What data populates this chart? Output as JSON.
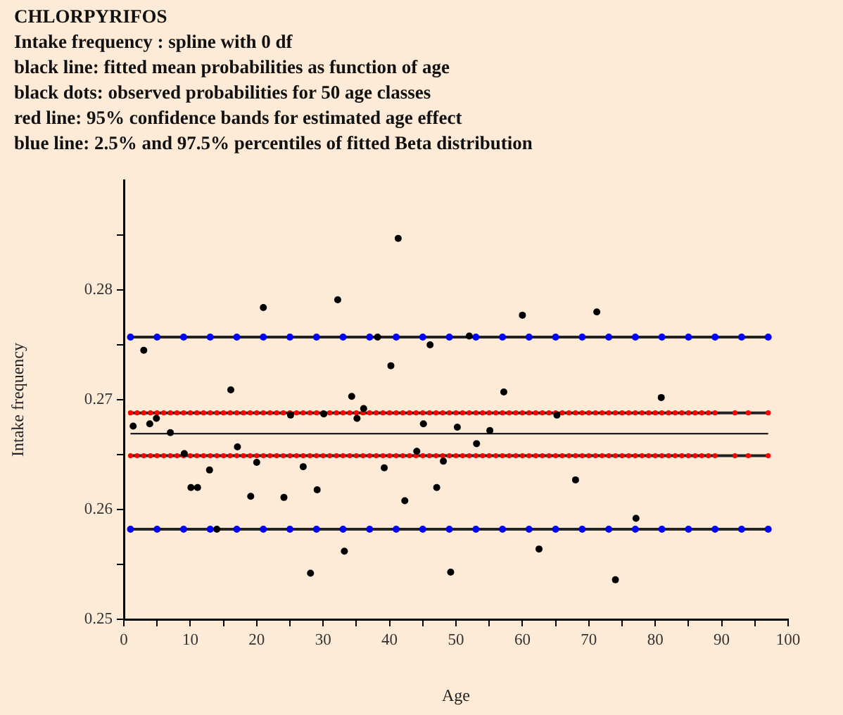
{
  "chart_data": {
    "type": "scatter",
    "title": "CHLORPYRIFOS",
    "subtitle": "Intake frequency : spline with 0 df",
    "annotations": [
      "black line: fitted mean probabilities as function of age",
      "black dots: observed probabilities for 50 age classes",
      "red line: 95% confidence bands for estimated age effect",
      "blue line: 2.5% and 97.5% percentiles of fitted Beta distribution"
    ],
    "xlabel": "Age",
    "ylabel": "Intake frequency",
    "xlim": [
      0,
      100
    ],
    "xticks": [
      0,
      {
        "value": 5,
        "label": null
      },
      10,
      {
        "value": 15,
        "label": null
      },
      20,
      {
        "value": 25,
        "label": null
      },
      30,
      {
        "value": 35,
        "label": null
      },
      40,
      {
        "value": 45,
        "label": null
      },
      50,
      {
        "value": 55,
        "label": null
      },
      60,
      {
        "value": 65,
        "label": null
      },
      70,
      {
        "value": 75,
        "label": null
      },
      80,
      {
        "value": 85,
        "label": null
      },
      90,
      {
        "value": 95,
        "label": null
      },
      100
    ],
    "ylim": [
      0.25,
      0.29
    ],
    "yticks": [
      0.25,
      {
        "value": 0.255,
        "label": null
      },
      0.26,
      {
        "value": 0.265,
        "label": null
      },
      0.27,
      {
        "value": 0.275,
        "label": null
      },
      0.28,
      {
        "value": 0.285,
        "label": null
      }
    ],
    "legend": false,
    "series": [
      {
        "type": "scatter",
        "color": "#000000",
        "marker": "circle",
        "x": [
          1.4,
          3.0,
          3.9,
          4.9,
          7.0,
          9.1,
          10.1,
          11.1,
          12.9,
          14.0,
          16.1,
          17.1,
          19.1,
          20.0,
          21.0,
          24.1,
          25.1,
          27.0,
          28.1,
          29.1,
          30.1,
          32.2,
          33.2,
          34.3,
          35.1,
          36.1,
          38.2,
          39.2,
          40.2,
          41.3,
          42.3,
          44.1,
          45.1,
          46.1,
          47.1,
          48.1,
          49.2,
          50.2,
          52.0,
          53.1,
          55.1,
          57.2,
          60.0,
          62.5,
          65.2,
          68.0,
          71.2,
          74.0,
          77.1,
          80.9
        ],
        "values": [
          0.2676,
          0.2745,
          0.2678,
          0.2683,
          0.267,
          0.2651,
          0.262,
          0.262,
          0.2636,
          0.2582,
          0.2709,
          0.2657,
          0.2612,
          0.2643,
          0.2784,
          0.2611,
          0.2686,
          0.2639,
          0.2542,
          0.2618,
          0.2687,
          0.2791,
          0.2562,
          0.2703,
          0.2683,
          0.2692,
          0.2757,
          0.2638,
          0.2731,
          0.2847,
          0.2608,
          0.2653,
          0.2678,
          0.275,
          0.262,
          0.2644,
          0.2543,
          0.2675,
          0.2758,
          0.266,
          0.2672,
          0.2707,
          0.2777,
          0.2564,
          0.2686,
          0.2627,
          0.278,
          0.2536,
          0.2592,
          0.2702
        ]
      },
      {
        "type": "line",
        "color": "#000000",
        "marker": "none",
        "x": [
          1,
          97
        ],
        "values": [
          0.2669,
          0.2669
        ]
      },
      {
        "type": "line",
        "color": "#0000ff",
        "marker": "circle",
        "x": [
          1,
          5,
          9,
          13,
          17,
          21,
          25,
          29,
          33,
          37,
          41,
          45,
          49,
          53,
          57,
          61,
          65,
          69,
          73,
          77,
          81,
          85,
          89,
          93,
          97
        ],
        "values": [
          0.2757,
          0.2757,
          0.2757,
          0.2757,
          0.2757,
          0.2757,
          0.2757,
          0.2757,
          0.2757,
          0.2757,
          0.2757,
          0.2757,
          0.2757,
          0.2757,
          0.2757,
          0.2757,
          0.2757,
          0.2757,
          0.2757,
          0.2757,
          0.2757,
          0.2757,
          0.2757,
          0.2757,
          0.2757
        ]
      },
      {
        "type": "line",
        "color": "#0000ff",
        "marker": "circle",
        "x": [
          1,
          5,
          9,
          13,
          17,
          21,
          25,
          29,
          33,
          37,
          41,
          45,
          49,
          53,
          57,
          61,
          65,
          69,
          73,
          77,
          81,
          85,
          89,
          93,
          97
        ],
        "values": [
          0.2582,
          0.2582,
          0.2582,
          0.2582,
          0.2582,
          0.2582,
          0.2582,
          0.2582,
          0.2582,
          0.2582,
          0.2582,
          0.2582,
          0.2582,
          0.2582,
          0.2582,
          0.2582,
          0.2582,
          0.2582,
          0.2582,
          0.2582,
          0.2582,
          0.2582,
          0.2582,
          0.2582,
          0.2582
        ]
      },
      {
        "type": "line",
        "color": "#ff0000",
        "marker": "circle",
        "x": [
          1,
          2,
          3,
          4,
          5,
          6,
          7,
          8,
          9,
          10,
          11,
          12,
          13,
          14,
          15,
          16,
          17,
          18,
          19,
          20,
          21,
          22,
          23,
          24,
          25,
          26,
          27,
          28,
          29,
          30,
          31,
          32,
          33,
          34,
          35,
          36,
          37,
          38,
          39,
          40,
          41,
          42,
          43,
          44,
          45,
          46,
          47,
          48,
          49,
          50,
          51,
          52,
          53,
          54,
          55,
          56,
          57,
          58,
          59,
          60,
          61,
          62,
          63,
          64,
          65,
          66,
          67,
          68,
          69,
          70,
          71,
          72,
          73,
          74,
          75,
          76,
          77,
          78,
          79,
          80,
          81,
          82,
          83,
          84,
          85,
          86,
          87,
          88,
          89,
          92,
          94,
          97
        ],
        "values": [
          0.2688,
          0.2688,
          0.2688,
          0.2688,
          0.2688,
          0.2688,
          0.2688,
          0.2688,
          0.2688,
          0.2688,
          0.2688,
          0.2688,
          0.2688,
          0.2688,
          0.2688,
          0.2688,
          0.2688,
          0.2688,
          0.2688,
          0.2688,
          0.2688,
          0.2688,
          0.2688,
          0.2688,
          0.2688,
          0.2688,
          0.2688,
          0.2688,
          0.2688,
          0.2688,
          0.2688,
          0.2688,
          0.2688,
          0.2688,
          0.2688,
          0.2688,
          0.2688,
          0.2688,
          0.2688,
          0.2688,
          0.2688,
          0.2688,
          0.2688,
          0.2688,
          0.2688,
          0.2688,
          0.2688,
          0.2688,
          0.2688,
          0.2688,
          0.2688,
          0.2688,
          0.2688,
          0.2688,
          0.2688,
          0.2688,
          0.2688,
          0.2688,
          0.2688,
          0.2688,
          0.2688,
          0.2688,
          0.2688,
          0.2688,
          0.2688,
          0.2688,
          0.2688,
          0.2688,
          0.2688,
          0.2688,
          0.2688,
          0.2688,
          0.2688,
          0.2688,
          0.2688,
          0.2688,
          0.2688,
          0.2688,
          0.2688,
          0.2688,
          0.2688,
          0.2688,
          0.2688,
          0.2688,
          0.2688,
          0.2688,
          0.2688,
          0.2688,
          0.2688,
          0.2688,
          0.2688,
          0.2688
        ]
      },
      {
        "type": "line",
        "color": "#ff0000",
        "marker": "circle",
        "x": [
          1,
          2,
          3,
          4,
          5,
          6,
          7,
          8,
          9,
          10,
          11,
          12,
          13,
          14,
          15,
          16,
          17,
          18,
          19,
          20,
          21,
          22,
          23,
          24,
          25,
          26,
          27,
          28,
          29,
          30,
          31,
          32,
          33,
          34,
          35,
          36,
          37,
          38,
          39,
          40,
          41,
          42,
          43,
          44,
          45,
          46,
          47,
          48,
          49,
          50,
          51,
          52,
          53,
          54,
          55,
          56,
          57,
          58,
          59,
          60,
          61,
          62,
          63,
          64,
          65,
          66,
          67,
          68,
          69,
          70,
          71,
          72,
          73,
          74,
          75,
          76,
          77,
          78,
          79,
          80,
          81,
          82,
          83,
          84,
          85,
          86,
          87,
          88,
          89,
          92,
          94,
          97
        ],
        "values": [
          0.2649,
          0.2649,
          0.2649,
          0.2649,
          0.2649,
          0.2649,
          0.2649,
          0.2649,
          0.2649,
          0.2649,
          0.2649,
          0.2649,
          0.2649,
          0.2649,
          0.2649,
          0.2649,
          0.2649,
          0.2649,
          0.2649,
          0.2649,
          0.2649,
          0.2649,
          0.2649,
          0.2649,
          0.2649,
          0.2649,
          0.2649,
          0.2649,
          0.2649,
          0.2649,
          0.2649,
          0.2649,
          0.2649,
          0.2649,
          0.2649,
          0.2649,
          0.2649,
          0.2649,
          0.2649,
          0.2649,
          0.2649,
          0.2649,
          0.2649,
          0.2649,
          0.2649,
          0.2649,
          0.2649,
          0.2649,
          0.2649,
          0.2649,
          0.2649,
          0.2649,
          0.2649,
          0.2649,
          0.2649,
          0.2649,
          0.2649,
          0.2649,
          0.2649,
          0.2649,
          0.2649,
          0.2649,
          0.2649,
          0.2649,
          0.2649,
          0.2649,
          0.2649,
          0.2649,
          0.2649,
          0.2649,
          0.2649,
          0.2649,
          0.2649,
          0.2649,
          0.2649,
          0.2649,
          0.2649,
          0.2649,
          0.2649,
          0.2649,
          0.2649,
          0.2649,
          0.2649,
          0.2649,
          0.2649,
          0.2649,
          0.2649,
          0.2649,
          0.2649,
          0.2649,
          0.2649,
          0.2649
        ]
      }
    ]
  }
}
